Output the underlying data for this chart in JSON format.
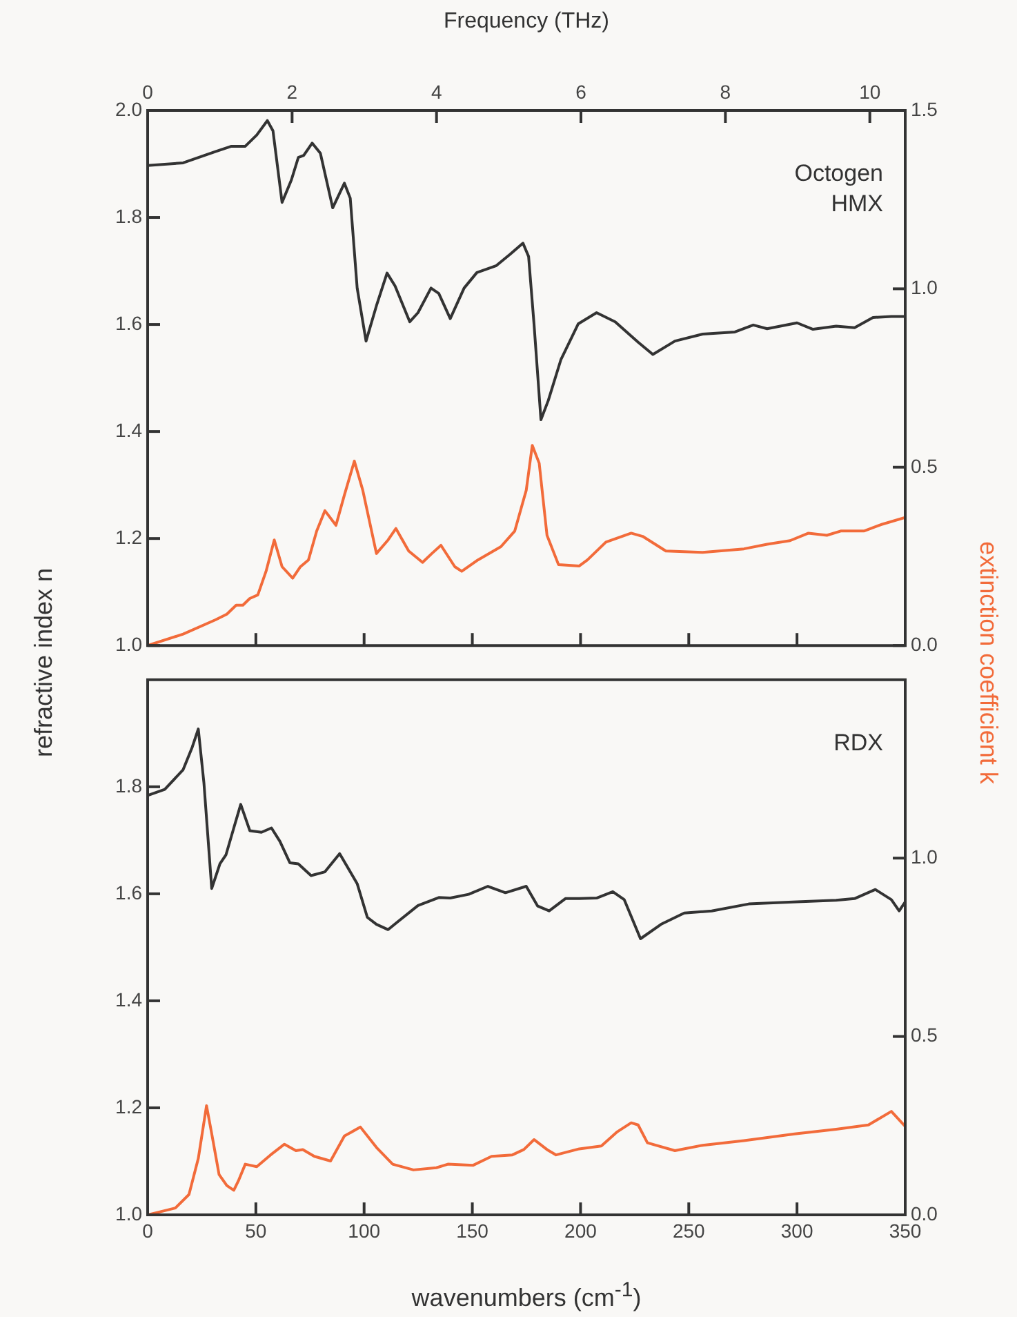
{
  "chart_data": [
    {
      "type": "line",
      "x2label": "Frequency (THz)",
      "ylabel": "refractive index n",
      "y2label": "extinction coefficient k",
      "annotations": [
        "Octogen\nHMX"
      ],
      "xlim": [
        0,
        350
      ],
      "xticks": [
        0,
        50,
        100,
        150,
        200,
        250,
        300,
        350
      ],
      "x2lim": [
        0,
        10.49
      ],
      "x2ticks": [
        0,
        2,
        4,
        6,
        8,
        10
      ],
      "ylim": [
        1,
        2
      ],
      "yticks": [
        {
          "value": 1,
          "label": "1.0"
        },
        {
          "value": 1.2,
          "label": "1.2"
        },
        {
          "value": 1.4,
          "label": "1.4"
        },
        {
          "value": 1.6,
          "label": "1.6"
        },
        {
          "value": 1.8,
          "label": "1.8"
        },
        {
          "value": 2,
          "label": "2.0"
        }
      ],
      "y2lim": [
        0,
        1.5
      ],
      "y2ticks": [
        {
          "value": 0,
          "label": "0.0"
        },
        {
          "value": 0.5,
          "label": "0.5"
        },
        {
          "value": 1,
          "label": "1.0"
        },
        {
          "value": 1.5,
          "label": "1.5"
        }
      ],
      "tick_labels": "y",
      "marker": "none",
      "grid": false,
      "series": [
        {
          "color": "#333333",
          "x": [
            0,
            16.4,
            31.3,
            38.7,
            45.1,
            50.4,
            55.3,
            57.9,
            62.1,
            66.4,
            69.6,
            72.1,
            76,
            79.8,
            85.5,
            90.9,
            93.6,
            96.8,
            100.9,
            105.7,
            110.6,
            114.3,
            121.1,
            124.9,
            130.9,
            134.5,
            139.8,
            146.2,
            152.1,
            161.1,
            167.4,
            173.4,
            176,
            178.5,
            181.7,
            185.1,
            190.9,
            198.9,
            207.4,
            216,
            226.6,
            233.4,
            243.6,
            256.4,
            271.3,
            279.8,
            286.2,
            300,
            307.4,
            318.1,
            326.6,
            335.1,
            343.6,
            350
          ],
          "values": [
            1.897,
            1.902,
            1.923,
            1.933,
            1.933,
            1.954,
            1.981,
            1.962,
            1.828,
            1.87,
            1.912,
            1.916,
            1.939,
            1.92,
            1.818,
            1.864,
            1.836,
            1.668,
            1.569,
            1.635,
            1.696,
            1.672,
            1.605,
            1.622,
            1.668,
            1.658,
            1.611,
            1.668,
            1.697,
            1.71,
            1.731,
            1.752,
            1.727,
            1.601,
            1.422,
            1.458,
            1.534,
            1.601,
            1.622,
            1.605,
            1.567,
            1.544,
            1.569,
            1.582,
            1.586,
            1.599,
            1.592,
            1.603,
            1.591,
            1.597,
            1.594,
            1.613,
            1.615,
            1.615
          ]
        },
        {
          "color": "#f26b3a",
          "axis": "y2",
          "x": [
            0,
            16.4,
            31.3,
            36.6,
            40.9,
            44,
            47.2,
            50.9,
            54.7,
            58.5,
            62.1,
            67,
            70.6,
            74.3,
            78.1,
            81.9,
            87,
            90.9,
            95.5,
            99.4,
            105.7,
            111.1,
            114.7,
            120.6,
            127,
            131.3,
            135.5,
            141.9,
            145.1,
            152.6,
            163.2,
            169.6,
            174.9,
            177.7,
            180.9,
            184.5,
            189.8,
            199.4,
            203.2,
            211.7,
            223.4,
            228.7,
            239.4,
            256.4,
            275.5,
            286.2,
            296.8,
            305.3,
            313.8,
            320.2,
            330.9,
            339.4,
            350
          ],
          "values": [
            0,
            0.032,
            0.072,
            0.088,
            0.113,
            0.113,
            0.132,
            0.142,
            0.208,
            0.296,
            0.221,
            0.189,
            0.221,
            0.24,
            0.321,
            0.378,
            0.337,
            0.422,
            0.517,
            0.435,
            0.258,
            0.296,
            0.328,
            0.265,
            0.233,
            0.258,
            0.281,
            0.221,
            0.208,
            0.24,
            0.277,
            0.321,
            0.435,
            0.561,
            0.511,
            0.309,
            0.227,
            0.223,
            0.24,
            0.29,
            0.315,
            0.306,
            0.265,
            0.261,
            0.271,
            0.284,
            0.294,
            0.315,
            0.309,
            0.321,
            0.321,
            0.34,
            0.359
          ]
        }
      ]
    },
    {
      "type": "line",
      "xlabel": "wavenumbers (cm$^{-1}$)",
      "annotations": [
        "RDX"
      ],
      "xlim": [
        0,
        350
      ],
      "xticks": [
        0,
        50,
        100,
        150,
        200,
        250,
        300,
        350
      ],
      "ylim": [
        1,
        2
      ],
      "yticks": [
        {
          "value": 1,
          "label": "1.0"
        },
        {
          "value": 1.2,
          "label": "1.2"
        },
        {
          "value": 1.4,
          "label": "1.4"
        },
        {
          "value": 1.6,
          "label": "1.6"
        },
        {
          "value": 1.8,
          "label": "1.8"
        }
      ],
      "y2lim": [
        0,
        1.5
      ],
      "y2ticks": [
        {
          "value": 0,
          "label": "0.0"
        },
        {
          "value": 0.5,
          "label": "0.5"
        },
        {
          "value": 1,
          "label": "1.0"
        }
      ],
      "marker": "none",
      "grid": false,
      "series": [
        {
          "color": "#333333",
          "x": [
            0,
            7.9,
            16.4,
            20.6,
            23.4,
            26,
            29.6,
            33.4,
            36.2,
            39.8,
            43,
            47.2,
            52.6,
            57.2,
            61.1,
            65.7,
            69.6,
            75.5,
            81.9,
            88.7,
            96.8,
            101.5,
            105.7,
            111.1,
            115.3,
            124.9,
            134.5,
            139.8,
            148.3,
            157.2,
            165.3,
            174.9,
            180.2,
            185.5,
            193,
            199.4,
            207.4,
            214.9,
            220.2,
            227.7,
            237.2,
            247.9,
            260.6,
            277.7,
            300,
            318.1,
            326.6,
            336.2,
            343.6,
            347.2,
            350
          ],
          "values": [
            1.784,
            1.795,
            1.832,
            1.874,
            1.908,
            1.807,
            1.61,
            1.656,
            1.673,
            1.723,
            1.767,
            1.718,
            1.715,
            1.723,
            1.698,
            1.658,
            1.656,
            1.634,
            1.641,
            1.675,
            1.619,
            1.556,
            1.543,
            1.533,
            1.547,
            1.578,
            1.593,
            1.592,
            1.599,
            1.614,
            1.602,
            1.614,
            1.577,
            1.568,
            1.591,
            1.591,
            1.592,
            1.604,
            1.589,
            1.516,
            1.543,
            1.564,
            1.568,
            1.581,
            1.585,
            1.588,
            1.591,
            1.608,
            1.589,
            1.568,
            1.585
          ]
        },
        {
          "color": "#f26b3a",
          "axis": "y2",
          "x": [
            0,
            12.8,
            19.1,
            23.4,
            27.2,
            29.8,
            33,
            36.6,
            39.8,
            41.9,
            45.1,
            50.4,
            56.8,
            63.2,
            68.5,
            71.7,
            77,
            84.5,
            90.9,
            98.3,
            105.7,
            113.2,
            122.8,
            133.4,
            138.7,
            150.4,
            158.9,
            168.5,
            173.8,
            178.5,
            184.5,
            188.7,
            199.4,
            209.6,
            217,
            223.4,
            226.6,
            230.9,
            243.6,
            256.4,
            275.5,
            298.9,
            318.1,
            333,
            343.6,
            350
          ],
          "values": [
            0,
            0.019,
            0.057,
            0.158,
            0.306,
            0.221,
            0.113,
            0.082,
            0.069,
            0.095,
            0.142,
            0.135,
            0.168,
            0.198,
            0.18,
            0.183,
            0.164,
            0.151,
            0.221,
            0.246,
            0.189,
            0.142,
            0.126,
            0.132,
            0.142,
            0.139,
            0.164,
            0.168,
            0.183,
            0.211,
            0.183,
            0.168,
            0.185,
            0.193,
            0.233,
            0.258,
            0.252,
            0.202,
            0.18,
            0.195,
            0.208,
            0.227,
            0.24,
            0.252,
            0.29,
            0.248
          ]
        }
      ]
    }
  ]
}
